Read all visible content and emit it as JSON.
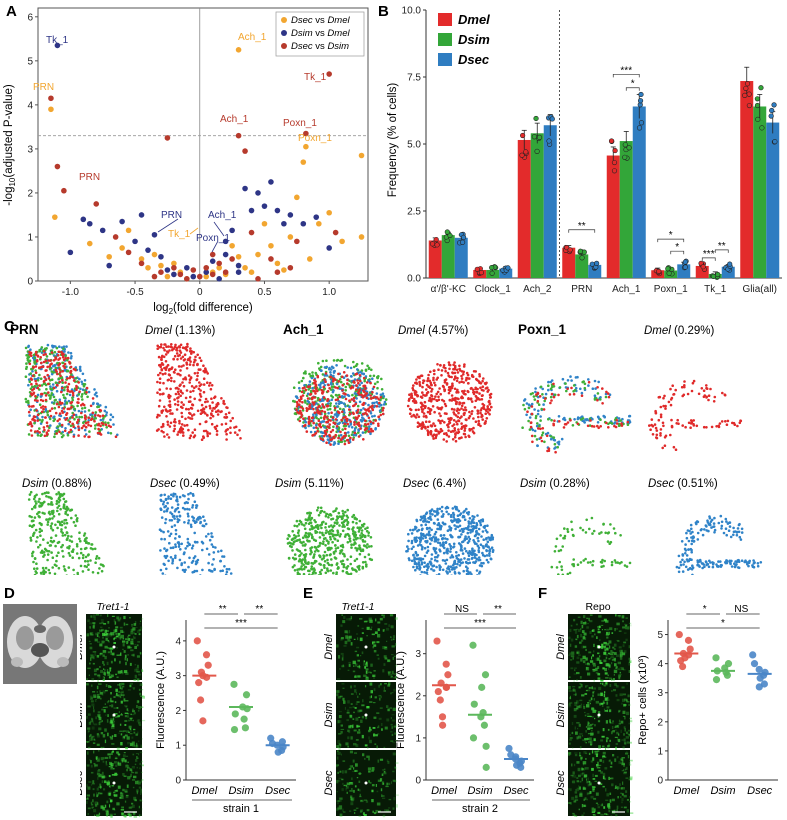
{
  "figure": {
    "panel_letters": [
      "A",
      "B",
      "C",
      "D",
      "E",
      "F"
    ]
  },
  "panel_a": {
    "legend": [
      {
        "a": "Dsec",
        "b": "Dmel",
        "color": "#f2a630"
      },
      {
        "a": "Dsim",
        "b": "Dmel",
        "color": "#2e3586"
      },
      {
        "a": "Dsec",
        "b": "Dsim",
        "color": "#b63a2c"
      }
    ],
    "vs": "vs",
    "xlabel_pre": "log",
    "xlabel_sub": "2",
    "xlabel_post": "(fold difference)",
    "ylabel_pre": "-log",
    "ylabel_sub": "10",
    "ylabel_post": "(adjusted P-value)",
    "xticks": [
      "-1.0",
      "-0.5",
      "0",
      "0.5",
      "1.0"
    ],
    "yticks": [
      "0",
      "1",
      "2",
      "3",
      "4",
      "5",
      "6"
    ],
    "labels": {
      "tk1_dsim": "Tk_1",
      "prn_dsec": "PRN",
      "ach1_dsec": "Ach_1",
      "tk1_dsecdsim": "Tk_1",
      "ach1_dsecdsim": "Ach_1",
      "poxn1_dsecdsim": "Poxn_1",
      "poxn1_dsec": "Poxn_1",
      "prn_dsecdsim": "PRN",
      "prn_dsim": "PRN",
      "ach1_dsim": "Ach_1",
      "tk1_dsec2": "Tk_1",
      "poxn1_dsim": "Poxn_1"
    },
    "chart_data": {
      "type": "scatter",
      "title": "",
      "xlabel": "log2(fold difference)",
      "ylabel": "-log10(adjusted P-value)",
      "xlim": [
        -1.25,
        1.3
      ],
      "ylim": [
        0,
        6.2
      ],
      "threshold": 3.3,
      "series": [
        {
          "name": "Dsec vs Dmel",
          "color": "#f2a630",
          "points": [
            [
              -1.15,
              3.9
            ],
            [
              -1.12,
              1.45
            ],
            [
              -0.85,
              0.85
            ],
            [
              -0.6,
              0.75
            ],
            [
              -0.55,
              1.15
            ],
            [
              -0.45,
              0.5
            ],
            [
              -0.4,
              0.3
            ],
            [
              -0.3,
              0.35
            ],
            [
              -0.25,
              0.1
            ],
            [
              -0.2,
              0.4
            ],
            [
              -0.15,
              0.2
            ],
            [
              -0.1,
              0.05
            ],
            [
              0.05,
              0.1
            ],
            [
              0.1,
              0.2
            ],
            [
              0.15,
              0.3
            ],
            [
              0.2,
              0.15
            ],
            [
              0.3,
              5.25
            ],
            [
              0.3,
              0.55
            ],
            [
              0.35,
              0.3
            ],
            [
              0.45,
              0.6
            ],
            [
              0.5,
              1.3
            ],
            [
              0.55,
              0.8
            ],
            [
              0.6,
              0.4
            ],
            [
              0.7,
              1.0
            ],
            [
              0.75,
              1.9
            ],
            [
              0.8,
              2.7
            ],
            [
              0.82,
              3.05
            ],
            [
              0.85,
              0.5
            ],
            [
              0.92,
              1.3
            ],
            [
              1.0,
              1.55
            ],
            [
              1.1,
              0.9
            ],
            [
              1.25,
              2.85
            ],
            [
              1.25,
              1.0
            ],
            [
              -0.7,
              0.55
            ],
            [
              0.4,
              0.2
            ],
            [
              -0.35,
              0.6
            ],
            [
              0.65,
              0.25
            ],
            [
              0.25,
              0.8
            ]
          ]
        },
        {
          "name": "Dsim vs Dmel",
          "color": "#2e3586",
          "points": [
            [
              -1.1,
              5.35
            ],
            [
              -1.0,
              0.65
            ],
            [
              -0.9,
              1.4
            ],
            [
              -0.85,
              1.3
            ],
            [
              -0.75,
              1.15
            ],
            [
              -0.7,
              0.35
            ],
            [
              -0.6,
              1.35
            ],
            [
              -0.5,
              0.9
            ],
            [
              -0.45,
              1.5
            ],
            [
              -0.35,
              1.05
            ],
            [
              -0.3,
              0.55
            ],
            [
              -0.25,
              0.25
            ],
            [
              -0.2,
              0.15
            ],
            [
              -0.1,
              0.3
            ],
            [
              -0.05,
              0.1
            ],
            [
              0.05,
              0.2
            ],
            [
              0.1,
              0.45
            ],
            [
              0.15,
              0.05
            ],
            [
              0.2,
              0.9
            ],
            [
              0.25,
              1.15
            ],
            [
              0.3,
              0.35
            ],
            [
              0.35,
              2.1
            ],
            [
              0.4,
              1.6
            ],
            [
              0.45,
              2.0
            ],
            [
              0.5,
              1.7
            ],
            [
              0.55,
              2.25
            ],
            [
              0.6,
              1.6
            ],
            [
              0.65,
              1.3
            ],
            [
              0.7,
              1.5
            ],
            [
              0.8,
              1.3
            ],
            [
              0.9,
              1.45
            ],
            [
              1.0,
              0.75
            ],
            [
              0.3,
              0.2
            ],
            [
              -0.4,
              0.7
            ],
            [
              0.2,
              0.6
            ]
          ]
        },
        {
          "name": "Dsec vs Dsim",
          "color": "#b63a2c",
          "points": [
            [
              -1.15,
              4.15
            ],
            [
              -1.1,
              2.6
            ],
            [
              -1.05,
              2.05
            ],
            [
              -0.8,
              1.75
            ],
            [
              -0.65,
              1.0
            ],
            [
              -0.55,
              0.65
            ],
            [
              -0.45,
              0.4
            ],
            [
              -0.3,
              0.2
            ],
            [
              -0.25,
              3.25
            ],
            [
              -0.2,
              0.3
            ],
            [
              -0.15,
              0.15
            ],
            [
              -0.1,
              0.05
            ],
            [
              0.0,
              0.1
            ],
            [
              0.05,
              0.3
            ],
            [
              0.1,
              0.15
            ],
            [
              0.15,
              0.4
            ],
            [
              0.2,
              0.2
            ],
            [
              0.25,
              0.5
            ],
            [
              0.3,
              3.3
            ],
            [
              0.35,
              2.95
            ],
            [
              0.4,
              1.1
            ],
            [
              0.55,
              0.5
            ],
            [
              0.6,
              0.2
            ],
            [
              0.7,
              0.3
            ],
            [
              0.75,
              0.9
            ],
            [
              0.82,
              3.35
            ],
            [
              1.0,
              4.7
            ],
            [
              1.05,
              1.1
            ],
            [
              -0.35,
              0.1
            ],
            [
              0.45,
              0.05
            ],
            [
              0.1,
              0.6
            ],
            [
              -0.05,
              0.25
            ]
          ]
        }
      ]
    }
  },
  "panel_b": {
    "ylabel": "Frequency (% of cells)",
    "legend": [
      "Dmel",
      "Dsim",
      "Dsec"
    ],
    "yticks": [
      "0.0",
      "2.5",
      "5.0",
      "7.5",
      "10.0"
    ],
    "sig": [
      "**",
      "***",
      "*",
      "*",
      "*",
      "***",
      "**"
    ],
    "chart_data": {
      "type": "bar",
      "ylabel": "Frequency (% of cells)",
      "ylim": [
        0,
        10
      ],
      "categories": [
        "α'/β'-KC",
        "Clock_1",
        "Ach_2",
        "PRN",
        "Ach_1",
        "Poxn_1",
        "Tk_1",
        "Glia(all)"
      ],
      "series": [
        {
          "name": "Dmel",
          "color": "#e32b2b",
          "values": [
            1.4,
            0.3,
            5.15,
            1.13,
            4.57,
            0.29,
            0.45,
            7.35
          ]
        },
        {
          "name": "Dsim",
          "color": "#33a639",
          "values": [
            1.6,
            0.3,
            5.4,
            0.88,
            5.11,
            0.28,
            0.15,
            6.4
          ]
        },
        {
          "name": "Dsec",
          "color": "#2f7dc1",
          "values": [
            1.5,
            0.35,
            5.7,
            0.49,
            6.4,
            0.51,
            0.42,
            5.8
          ]
        }
      ]
    }
  },
  "panel_c": {
    "groups": [
      {
        "title": "PRN",
        "dmel": "Dmel",
        "dmel_pct": "(1.13%)",
        "dsim": "Dsim",
        "dsim_pct": "(0.88%)",
        "dsec": "Dsec",
        "dsec_pct": "(0.49%)"
      },
      {
        "title": "Ach_1",
        "dmel": "Dmel",
        "dmel_pct": "(4.57%)",
        "dsim": "Dsim",
        "dsim_pct": "(5.11%)",
        "dsec": "Dsec",
        "dsec_pct": "(6.4%)"
      },
      {
        "title": "Poxn_1",
        "dmel": "Dmel",
        "dmel_pct": "(0.29%)",
        "dsim": "Dsim",
        "dsim_pct": "(0.28%)",
        "dsec": "Dsec",
        "dsec_pct": "(0.51%)"
      }
    ]
  },
  "panel_d": {
    "title": "Tret1-1",
    "rows": [
      "Dmel",
      "Dsim",
      "Dsec"
    ],
    "ylabel": "Fluorescence (A.U.)",
    "xlabel": "strain 1",
    "yticks": [
      "0",
      "1",
      "2",
      "3",
      "4"
    ],
    "sig": [
      "**",
      "**",
      "***"
    ],
    "chart_data": {
      "type": "scatter",
      "ylabel": "Fluorescence (A.U.)",
      "xlabel": "strain 1",
      "ylim": [
        0,
        4.6
      ],
      "categories": [
        "Dmel",
        "Dsim",
        "Dsec"
      ],
      "medians": [
        3.0,
        2.1,
        1.0
      ],
      "series": [
        {
          "name": "Dmel",
          "color": "#e2574a",
          "values": [
            4.0,
            3.6,
            3.3,
            3.1,
            2.95,
            2.8,
            2.3,
            1.7,
            3.0
          ]
        },
        {
          "name": "Dsim",
          "color": "#5cb85c",
          "values": [
            2.75,
            2.45,
            2.1,
            1.9,
            1.75,
            1.5,
            1.45,
            2.05
          ]
        },
        {
          "name": "Dsec",
          "color": "#4a86c8",
          "values": [
            1.2,
            1.05,
            1.0,
            0.95,
            0.85,
            0.8,
            1.1
          ]
        }
      ]
    }
  },
  "panel_e": {
    "title": "Tret1-1",
    "rows": [
      "Dmel",
      "Dsim",
      "Dsec"
    ],
    "ylabel": "Fluorescence (A.U.)",
    "xlabel": "strain 2",
    "yticks": [
      "0",
      "1",
      "2",
      "3"
    ],
    "sig": [
      "NS",
      "**",
      "***"
    ],
    "chart_data": {
      "type": "scatter",
      "ylabel": "Fluorescence (A.U.)",
      "xlabel": "strain 2",
      "ylim": [
        0,
        3.8
      ],
      "categories": [
        "Dmel",
        "Dsim",
        "Dsec"
      ],
      "medians": [
        2.25,
        1.55,
        0.5
      ],
      "series": [
        {
          "name": "Dmel",
          "color": "#e2574a",
          "values": [
            3.3,
            2.75,
            2.5,
            2.3,
            2.2,
            2.1,
            1.9,
            1.5,
            1.3,
            2.2
          ]
        },
        {
          "name": "Dsim",
          "color": "#5cb85c",
          "values": [
            3.2,
            2.5,
            2.2,
            1.8,
            1.6,
            1.3,
            1.0,
            0.8,
            0.3,
            1.5
          ]
        },
        {
          "name": "Dsec",
          "color": "#4a86c8",
          "values": [
            0.75,
            0.6,
            0.5,
            0.45,
            0.4,
            0.35,
            0.3,
            0.55
          ]
        }
      ]
    }
  },
  "panel_f": {
    "title": "Repo",
    "rows": [
      "Dmel",
      "Dsim",
      "Dsec"
    ],
    "ylabel": "Repo+ cells (x10³)",
    "yticks": [
      "0",
      "1",
      "2",
      "3",
      "4",
      "5"
    ],
    "sig": [
      "*",
      "NS",
      "*"
    ],
    "chart_data": {
      "type": "scatter",
      "ylabel": "Repo+ cells (x10^3)",
      "ylim": [
        0,
        5.5
      ],
      "categories": [
        "Dmel",
        "Dsim",
        "Dsec"
      ],
      "medians": [
        4.35,
        3.75,
        3.65
      ],
      "series": [
        {
          "name": "Dmel",
          "color": "#e2574a",
          "values": [
            5.0,
            4.8,
            4.5,
            4.35,
            4.3,
            4.1,
            3.9,
            4.2
          ]
        },
        {
          "name": "Dsim",
          "color": "#5cb85c",
          "values": [
            4.2,
            4.0,
            3.85,
            3.75,
            3.7,
            3.6,
            3.45
          ]
        },
        {
          "name": "Dsec",
          "color": "#4a86c8",
          "values": [
            4.3,
            4.0,
            3.8,
            3.7,
            3.6,
            3.5,
            3.3,
            3.2
          ]
        }
      ]
    }
  }
}
